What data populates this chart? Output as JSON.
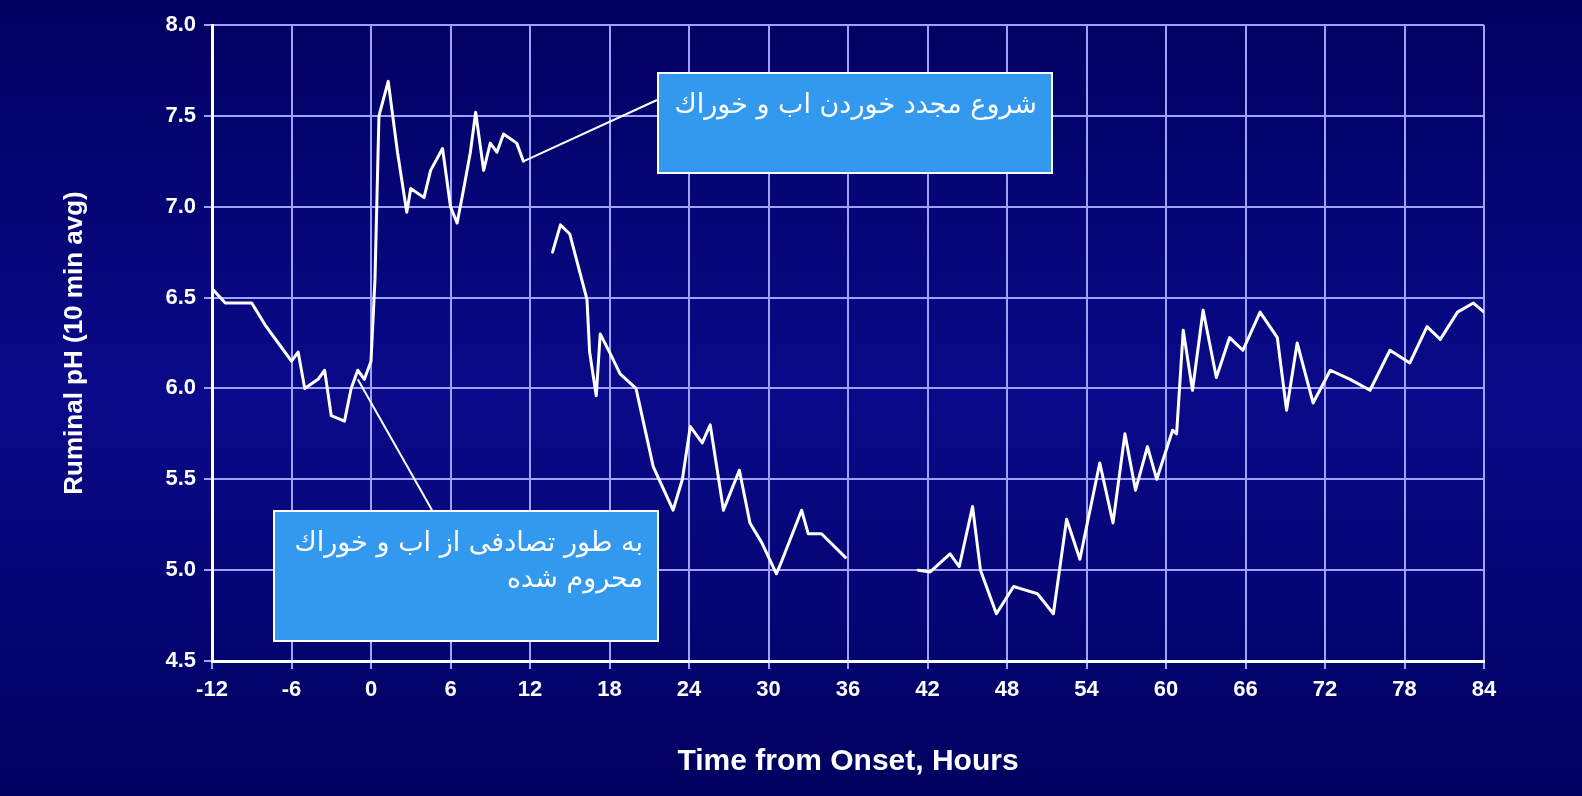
{
  "chart_data": {
    "type": "line",
    "xlabel": "Time from Onset, Hours",
    "ylabel": "Ruminal pH (10 min avg)",
    "xlim": [
      -12,
      84
    ],
    "xticks": [
      -12,
      -6,
      0,
      6,
      12,
      18,
      24,
      30,
      36,
      42,
      48,
      54,
      60,
      66,
      72,
      78,
      84
    ],
    "ylim": [
      4.5,
      8.0
    ],
    "yticks": [
      {
        "value": 4.5,
        "label": "4.5"
      },
      {
        "value": 5.0,
        "label": "5.0"
      },
      {
        "value": 5.5,
        "label": "5.5"
      },
      {
        "value": 6.0,
        "label": "6.0"
      },
      {
        "value": 6.5,
        "label": "6.5"
      },
      {
        "value": 7.0,
        "label": "7.0"
      },
      {
        "value": 7.5,
        "label": "7.5"
      },
      {
        "value": 8.0,
        "label": "8.0"
      }
    ],
    "grid": true,
    "legend": false,
    "marker": "none",
    "line_style": "solid",
    "series": [
      {
        "color": "#ffffff",
        "x": [
          -12,
          -11,
          -9,
          -8,
          -7,
          -6,
          -5.5,
          -5,
          -4,
          -3.5,
          -3,
          -2,
          -1.5,
          -1,
          -0.5,
          0,
          0.3,
          0.6,
          1.3,
          2,
          2.7,
          3,
          4,
          4.5,
          5.4,
          6,
          6.5,
          7,
          7.5,
          7.9,
          8.5,
          9,
          9.5,
          10,
          11,
          11.5,
          12.5,
          13.7,
          14.3,
          15,
          16.3,
          16.5,
          17,
          17.3,
          18,
          18.8,
          20,
          21.3,
          22.8,
          23.5,
          24.1,
          25,
          25.6,
          26.6,
          27.8,
          28.6,
          29.5,
          30.6,
          31,
          32.5,
          33,
          34,
          35.8,
          39,
          41.3,
          42.2,
          43.7,
          44.4,
          45.4,
          46,
          47.2,
          48.5,
          50.3,
          51.5,
          52.5,
          53.5,
          55,
          56,
          56.9,
          57.7,
          58.6,
          59.3,
          60.5,
          60.8,
          61.3,
          62,
          62.8,
          63.8,
          64.8,
          65.8,
          67.1,
          68.4,
          69.1,
          69.9,
          71.1,
          72.4,
          73.9,
          75.4,
          76.9,
          78.4,
          79.7,
          80.7,
          82,
          83.2,
          84
        ],
        "values": [
          6.55,
          6.47,
          6.47,
          6.35,
          6.25,
          6.15,
          6.2,
          6.0,
          6.05,
          6.1,
          5.85,
          5.82,
          6.0,
          6.1,
          6.05,
          6.15,
          6.6,
          7.5,
          7.69,
          7.3,
          6.97,
          7.1,
          7.05,
          7.2,
          7.32,
          7.0,
          6.91,
          7.1,
          7.3,
          7.52,
          7.2,
          7.35,
          7.3,
          7.4,
          7.35,
          7.25,
          null,
          6.75,
          6.9,
          6.85,
          6.49,
          6.2,
          5.96,
          6.3,
          6.2,
          6.08,
          6.0,
          5.57,
          5.33,
          5.5,
          5.79,
          5.7,
          5.8,
          5.33,
          5.55,
          5.26,
          5.15,
          4.98,
          5.05,
          5.33,
          5.2,
          5.2,
          5.07,
          null,
          5.0,
          4.99,
          5.09,
          5.02,
          5.35,
          5.0,
          4.76,
          4.91,
          4.87,
          4.76,
          5.28,
          5.06,
          5.59,
          5.26,
          5.75,
          5.44,
          5.68,
          5.5,
          5.77,
          5.75,
          6.32,
          5.99,
          6.43,
          6.06,
          6.28,
          6.21,
          6.42,
          6.28,
          5.88,
          6.25,
          5.92,
          6.1,
          6.05,
          5.99,
          6.21,
          6.14,
          6.34,
          6.27,
          6.42,
          6.47,
          6.42
        ]
      }
    ],
    "annotations": [
      {
        "text": "شروع مجدد خوردن اب و خوراك",
        "x": 11.5,
        "y": 7.25
      },
      {
        "text": "به طور تصادفی از اب و خوراك محروم شده",
        "x": -1,
        "y": 6.05
      }
    ]
  }
}
